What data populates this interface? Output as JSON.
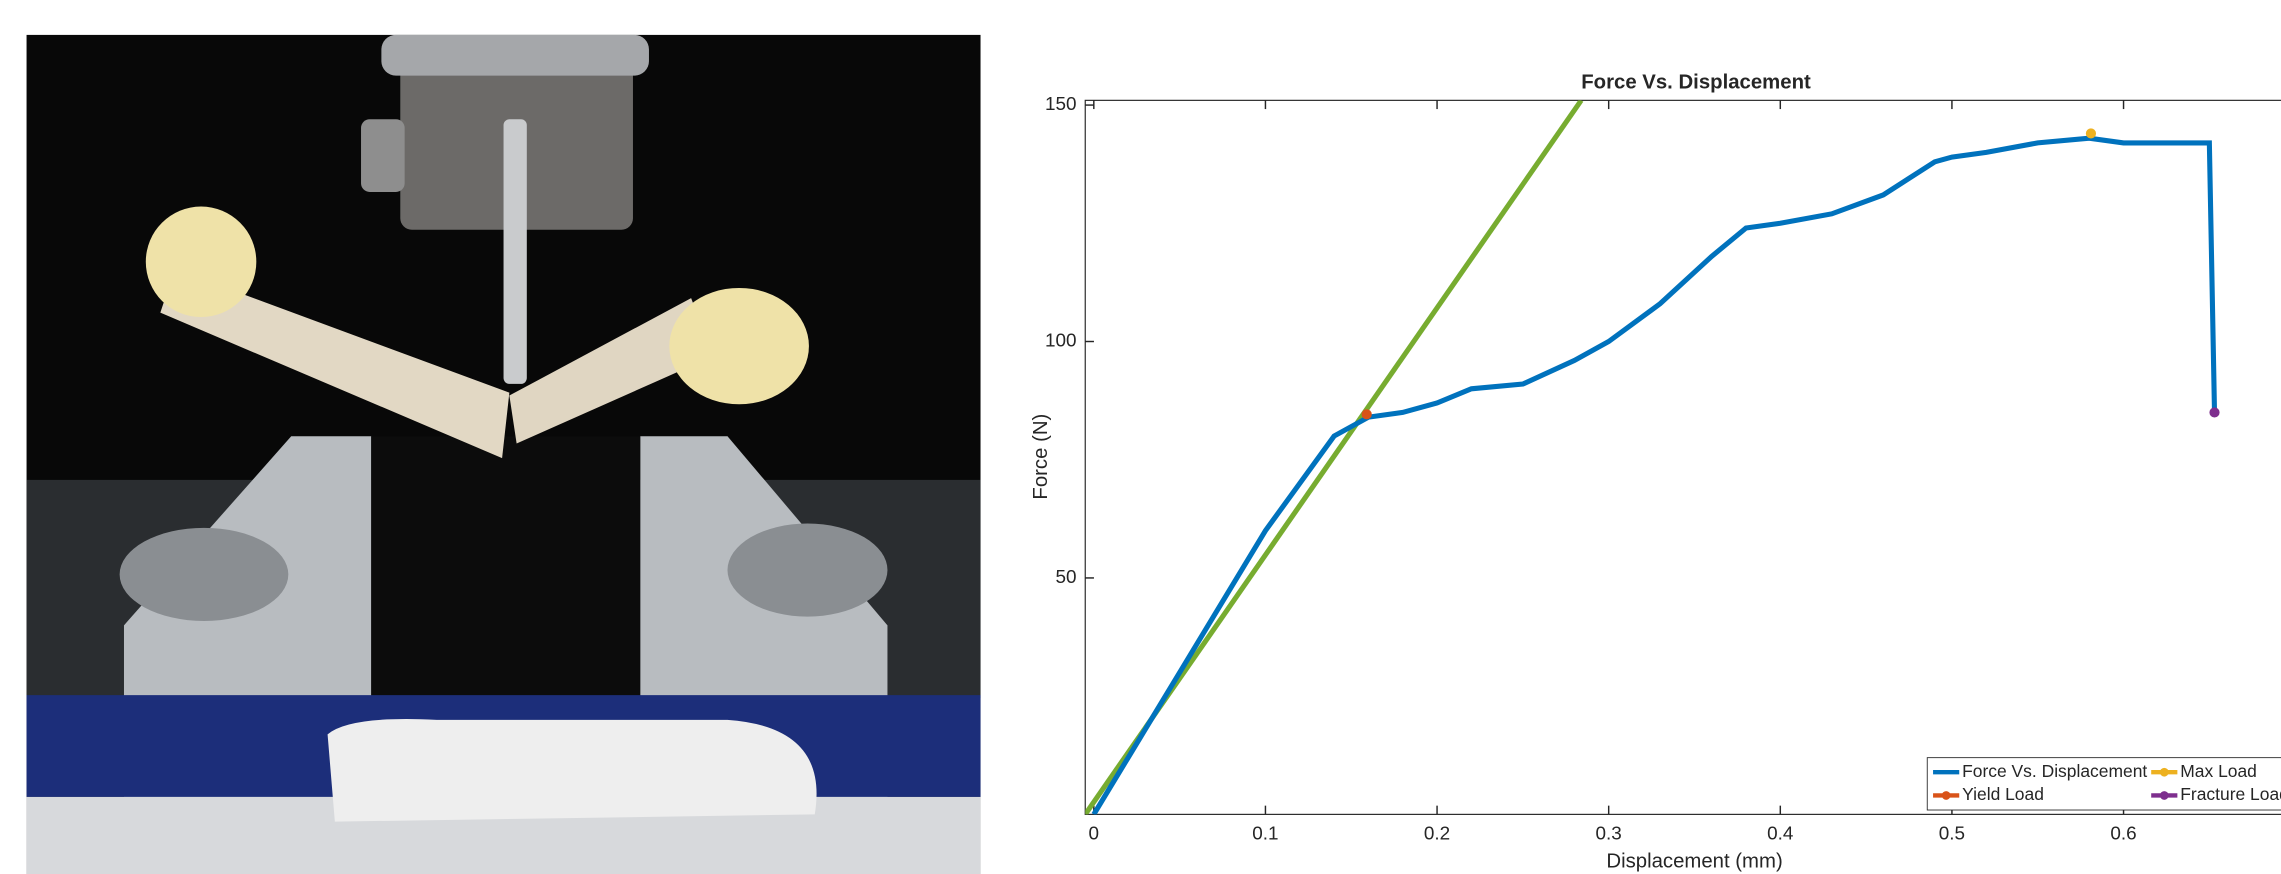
{
  "chart_data": {
    "type": "line",
    "title": "Force Vs. Displacement",
    "xlabel": "Displacement (mm)",
    "ylabel": "Force (N)",
    "xlim": [
      -0.005,
      0.7
    ],
    "xticks": [
      0,
      0.1,
      0.2,
      0.3,
      0.4,
      0.5,
      0.6
    ],
    "ylim": [
      0,
      151
    ],
    "yticks": [
      50,
      100,
      150
    ],
    "legend": "lower right",
    "series": [
      {
        "name": "Force Vs. Displacement",
        "color": "#0072bd",
        "x": [
          0,
          0.02,
          0.05,
          0.1,
          0.14,
          0.16,
          0.18,
          0.2,
          0.22,
          0.25,
          0.28,
          0.3,
          0.33,
          0.36,
          0.38,
          0.4,
          0.43,
          0.46,
          0.49,
          0.5,
          0.52,
          0.55,
          0.58,
          0.6,
          0.62,
          0.65,
          0.653
        ],
        "values": [
          0,
          12,
          30,
          60,
          80,
          84,
          85,
          87,
          90,
          91,
          96,
          100,
          108,
          118,
          124,
          125,
          127,
          131,
          138,
          139,
          140,
          142,
          143,
          142,
          142,
          142,
          85
        ]
      },
      {
        "name": "Yield Load",
        "color": "#d95319",
        "marker": true,
        "x": [
          0.159
        ],
        "values": [
          84.6
        ]
      },
      {
        "name": "Max Load",
        "color": "#edb120",
        "marker": true,
        "x": [
          0.581
        ],
        "values": [
          144
        ]
      },
      {
        "name": "Fracture Load",
        "color": "#7e2f8e",
        "marker": true,
        "x": [
          0.653
        ],
        "values": [
          85
        ]
      },
      {
        "color": "#77ac30",
        "x": [
          -0.005,
          0.284
        ],
        "values": [
          0,
          151
        ]
      }
    ]
  }
}
